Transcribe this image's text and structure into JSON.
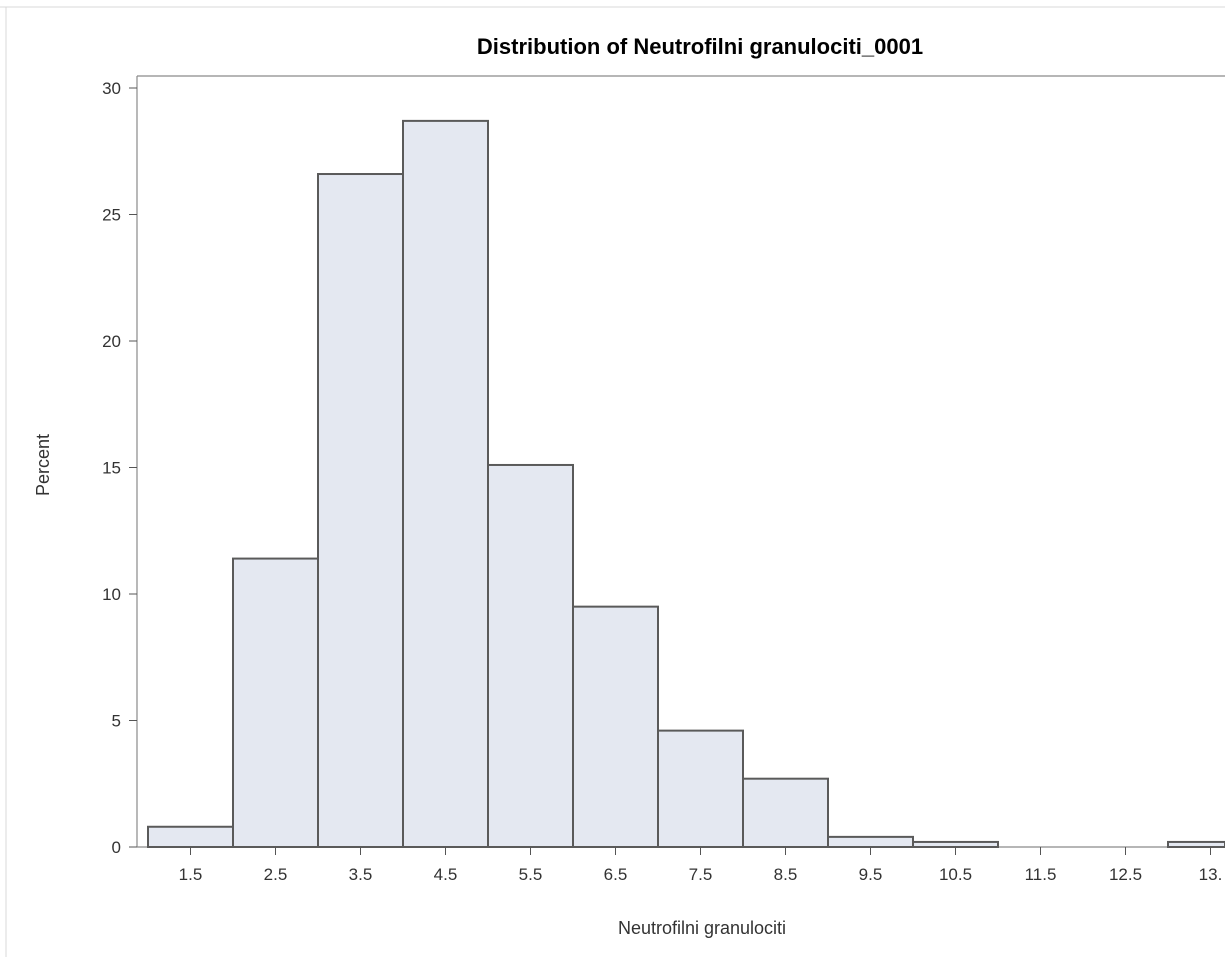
{
  "chart_data": {
    "type": "bar",
    "title": "Distribution of Neutrofilni granulociti_0001",
    "xlabel": "Neutrofilni granulociti",
    "ylabel": "Percent",
    "x_tick_labels": [
      "1.5",
      "2.5",
      "3.5",
      "4.5",
      "5.5",
      "6.5",
      "7.5",
      "8.5",
      "9.5",
      "10.5",
      "11.5",
      "12.5",
      "13."
    ],
    "y_tick_labels": [
      "0",
      "5",
      "10",
      "15",
      "20",
      "25",
      "30"
    ],
    "ylim": [
      0,
      30
    ],
    "bin_width": 1,
    "bins": [
      {
        "midpoint": 1.5,
        "percent": 0.8
      },
      {
        "midpoint": 2.5,
        "percent": 11.4
      },
      {
        "midpoint": 3.5,
        "percent": 26.6
      },
      {
        "midpoint": 4.5,
        "percent": 28.7
      },
      {
        "midpoint": 5.5,
        "percent": 15.1
      },
      {
        "midpoint": 6.5,
        "percent": 9.5
      },
      {
        "midpoint": 7.5,
        "percent": 4.6
      },
      {
        "midpoint": 8.5,
        "percent": 2.7
      },
      {
        "midpoint": 9.5,
        "percent": 0.4
      },
      {
        "midpoint": 10.5,
        "percent": 0.2
      },
      {
        "midpoint": 11.5,
        "percent": 0
      },
      {
        "midpoint": 12.5,
        "percent": 0
      },
      {
        "midpoint": 13.5,
        "percent": 0.2
      }
    ],
    "grid": false,
    "legend": "none",
    "colors": {
      "bar_fill": "#e4e8f1",
      "bar_stroke": "#5a5a5a",
      "axis": "#8a8a8a"
    }
  }
}
